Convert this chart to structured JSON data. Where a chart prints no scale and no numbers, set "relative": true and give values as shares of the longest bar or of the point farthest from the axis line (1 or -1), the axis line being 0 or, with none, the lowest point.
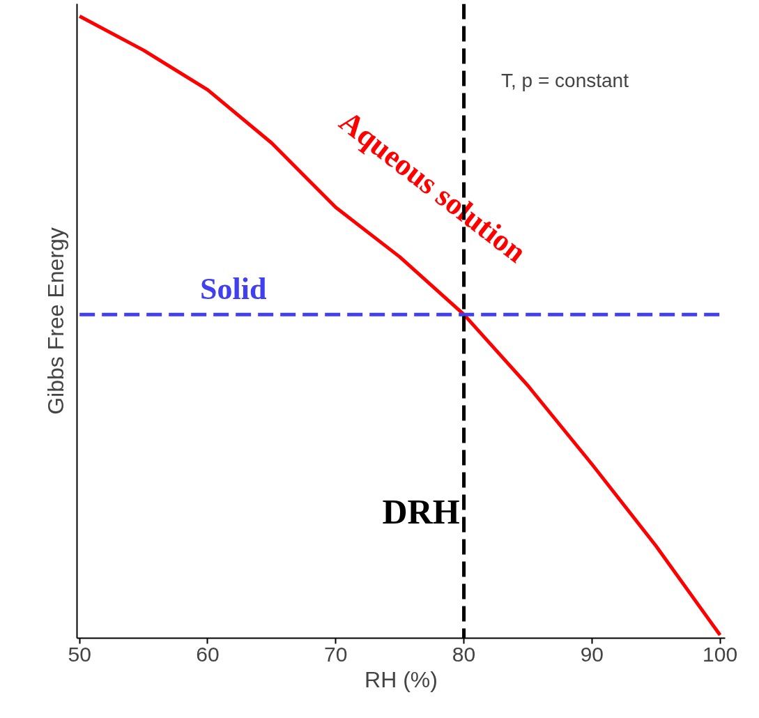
{
  "chart_data": {
    "type": "line",
    "relative": true,
    "xlabel": "RH (%)",
    "ylabel": "Gibbs Free Energy",
    "xlim": [
      49.8,
      100.4
    ],
    "xticks": [
      50,
      60,
      70,
      80,
      90,
      100
    ],
    "grid": false,
    "marker": "none",
    "series": [
      {
        "name": "Aqueous solution",
        "color": "#ff0000",
        "line_style": "solid",
        "x": [
          50,
          55,
          60,
          65,
          70,
          75,
          80,
          85,
          90,
          95,
          100
        ],
        "values": [
          1.0,
          0.945,
          0.881,
          0.795,
          0.691,
          0.611,
          0.518,
          0.403,
          0.276,
          0.144,
          0.0
        ]
      },
      {
        "name": "Solid",
        "color": "#4040ee",
        "line_style": "dashed",
        "x": [
          50,
          100
        ],
        "values": [
          0.518,
          0.518
        ]
      }
    ],
    "ref_lines": [
      {
        "axis": "x",
        "value": 80,
        "label": "DRH",
        "color": "#000000",
        "line_style": "dashed"
      }
    ],
    "annotations": [
      "T, p = constant"
    ]
  }
}
